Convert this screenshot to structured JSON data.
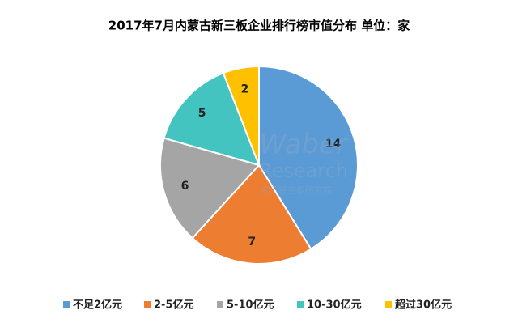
{
  "chart_data": {
    "type": "pie",
    "title": "2017年7月内蒙古新三板企业排行榜市值分布 单位：家",
    "categories": [
      "不足2亿元",
      "2-5亿元",
      "5-10亿元",
      "10-30亿元",
      "超过30亿元"
    ],
    "values": [
      14,
      7,
      6,
      5,
      2
    ],
    "colors": [
      "#5b9bd5",
      "#ed7d31",
      "#a5a5a5",
      "#44c4c0",
      "#ffc000"
    ],
    "legend": "bottom",
    "watermark": [
      "Waber",
      "Research",
      "挖贝新三板研究院"
    ]
  }
}
